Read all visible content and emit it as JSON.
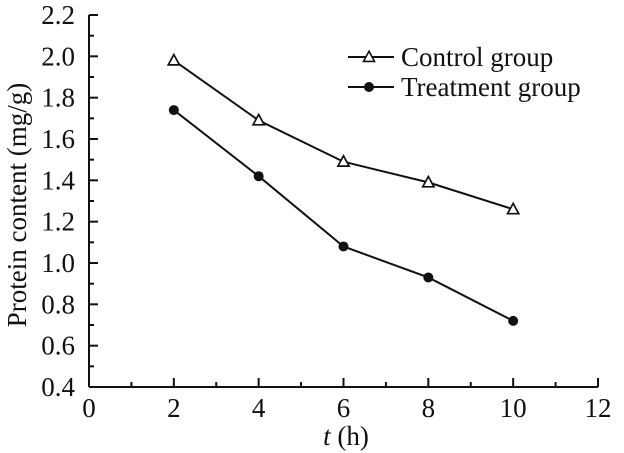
{
  "chart_data": {
    "type": "line",
    "title": "",
    "xlabel": "t (h)",
    "xlabel_var": "t",
    "xlabel_rest": " (h)",
    "ylabel": "Protein content (mg/g)",
    "x": [
      2,
      4,
      6,
      8,
      10
    ],
    "series": [
      {
        "name": "Control group",
        "marker": "triangle-open",
        "color": "#111111",
        "values": [
          1.98,
          1.69,
          1.49,
          1.39,
          1.26
        ]
      },
      {
        "name": "Treatment group",
        "marker": "circle-filled",
        "color": "#111111",
        "values": [
          1.74,
          1.42,
          1.08,
          0.93,
          0.72
        ]
      }
    ],
    "xlim": [
      0,
      12
    ],
    "ylim": [
      0.4,
      2.2
    ],
    "x_ticks": [
      0,
      2,
      4,
      6,
      8,
      10,
      12
    ],
    "y_ticks": [
      0.4,
      0.6,
      0.8,
      1.0,
      1.2,
      1.4,
      1.6,
      1.8,
      2.0,
      2.2
    ],
    "x_minor_step": 1,
    "y_minor_step": 0.1,
    "grid": false,
    "legend_position": "upper-right-inside",
    "background": "#ffffff",
    "axis_color": "#111111"
  }
}
